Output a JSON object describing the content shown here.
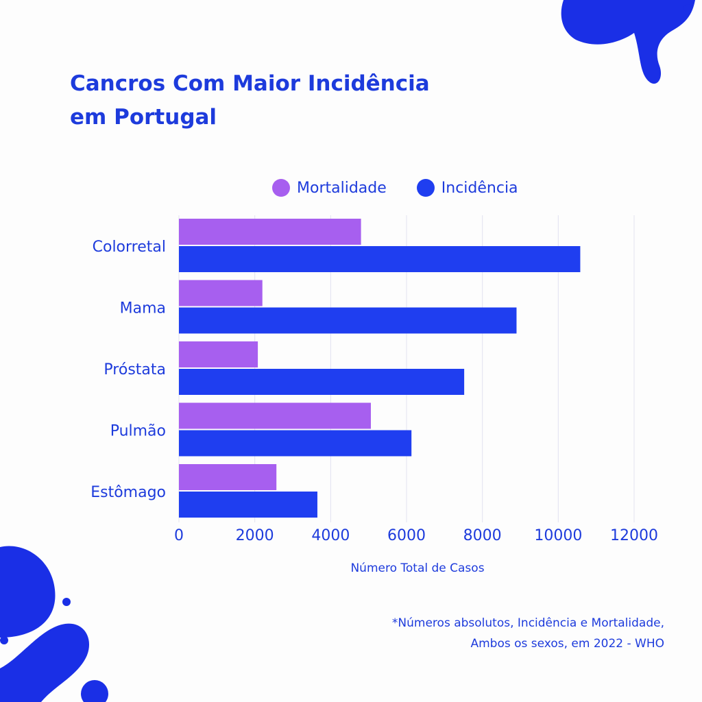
{
  "title_line1": "Cancros Com Maior Incidência",
  "title_line2": "em Portugal",
  "colors": {
    "mortalidade": "#a75fef",
    "incidencia": "#1f3ef0",
    "text": "#1d3bdc",
    "grid": "#e2e2f0"
  },
  "chart_data": {
    "type": "bar",
    "orientation": "horizontal",
    "categories": [
      "Colorretal",
      "Mama",
      "Próstata",
      "Pulmão",
      "Estômago"
    ],
    "series": [
      {
        "name": "Mortalidade",
        "values": [
          4800,
          2200,
          2080,
          5060,
          2570
        ]
      },
      {
        "name": "Incidência",
        "values": [
          10580,
          8900,
          7520,
          6130,
          3650
        ]
      }
    ],
    "xlabel": "Número Total de Casos",
    "ylabel": "",
    "xlim": [
      0,
      12000
    ],
    "xticks": [
      0,
      2000,
      4000,
      6000,
      8000,
      10000,
      12000
    ],
    "grid": true,
    "legend_position": "top"
  },
  "note_line1": "*Números absolutos, Incidência e Mortalidade,",
  "note_line2": "Ambos os sexos, em 2022 - WHO"
}
